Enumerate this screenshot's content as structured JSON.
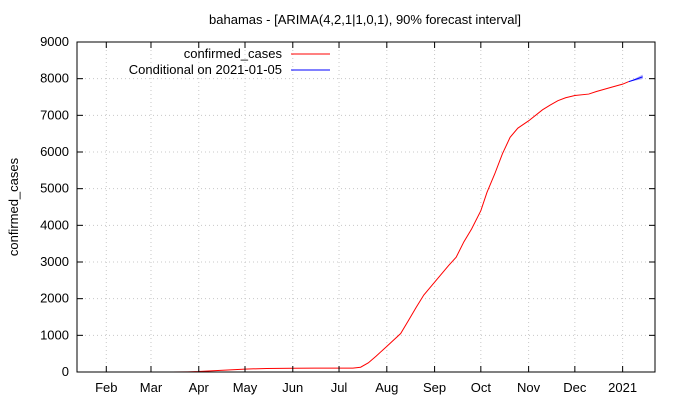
{
  "chart_data": {
    "type": "line",
    "title": "bahamas -  [ARIMA(4,2,1|1,0,1), 90% forecast interval]",
    "xlabel": "",
    "ylabel": "confirmed_cases",
    "ylim": [
      0,
      9000
    ],
    "xlim": [
      "2020-01-13",
      "2021-01-22"
    ],
    "yticks": [
      0,
      1000,
      2000,
      3000,
      4000,
      5000,
      6000,
      7000,
      8000,
      9000
    ],
    "xticks": [
      {
        "date": "2020-02-01",
        "label": "Feb"
      },
      {
        "date": "2020-03-01",
        "label": "Mar"
      },
      {
        "date": "2020-04-01",
        "label": "Apr"
      },
      {
        "date": "2020-05-01",
        "label": "May"
      },
      {
        "date": "2020-06-01",
        "label": "Jun"
      },
      {
        "date": "2020-07-01",
        "label": "Jul"
      },
      {
        "date": "2020-08-01",
        "label": "Aug"
      },
      {
        "date": "2020-09-01",
        "label": "Sep"
      },
      {
        "date": "2020-10-01",
        "label": "Oct"
      },
      {
        "date": "2020-11-01",
        "label": "Nov"
      },
      {
        "date": "2020-12-01",
        "label": "Dec"
      },
      {
        "date": "2021-01-01",
        "label": "2021"
      }
    ],
    "grid": true,
    "legend_position": "top-left",
    "series": [
      {
        "name": "confirmed_cases",
        "color": "#ff0000",
        "points": [
          [
            "2020-03-15",
            1
          ],
          [
            "2020-03-25",
            5
          ],
          [
            "2020-04-01",
            14
          ],
          [
            "2020-04-15",
            46
          ],
          [
            "2020-05-01",
            80
          ],
          [
            "2020-05-15",
            96
          ],
          [
            "2020-06-01",
            102
          ],
          [
            "2020-06-15",
            104
          ],
          [
            "2020-07-01",
            104
          ],
          [
            "2020-07-10",
            107
          ],
          [
            "2020-07-15",
            130
          ],
          [
            "2020-07-20",
            250
          ],
          [
            "2020-07-25",
            430
          ],
          [
            "2020-08-01",
            700
          ],
          [
            "2020-08-10",
            1050
          ],
          [
            "2020-08-15",
            1400
          ],
          [
            "2020-08-20",
            1760
          ],
          [
            "2020-08-25",
            2100
          ],
          [
            "2020-09-01",
            2450
          ],
          [
            "2020-09-10",
            2900
          ],
          [
            "2020-09-15",
            3130
          ],
          [
            "2020-09-20",
            3550
          ],
          [
            "2020-09-25",
            3900
          ],
          [
            "2020-10-01",
            4400
          ],
          [
            "2020-10-05",
            4900
          ],
          [
            "2020-10-10",
            5400
          ],
          [
            "2020-10-15",
            5950
          ],
          [
            "2020-10-20",
            6400
          ],
          [
            "2020-10-25",
            6650
          ],
          [
            "2020-11-01",
            6850
          ],
          [
            "2020-11-10",
            7150
          ],
          [
            "2020-11-15",
            7280
          ],
          [
            "2020-11-20",
            7400
          ],
          [
            "2020-11-25",
            7480
          ],
          [
            "2020-12-01",
            7540
          ],
          [
            "2020-12-10",
            7580
          ],
          [
            "2020-12-15",
            7650
          ],
          [
            "2020-12-25",
            7770
          ],
          [
            "2021-01-01",
            7850
          ],
          [
            "2021-01-05",
            7920
          ]
        ]
      },
      {
        "name": "Conditional on 2021-01-05",
        "color": "#0000ff",
        "band_color": "#aaaaff",
        "points": [
          [
            "2021-01-05",
            7920
          ],
          [
            "2021-01-08",
            7960
          ],
          [
            "2021-01-11",
            8005
          ],
          [
            "2021-01-14",
            8050
          ]
        ],
        "lower": [
          7920,
          7940,
          7965,
          7990
        ],
        "upper": [
          7920,
          7980,
          8045,
          8110
        ]
      }
    ]
  }
}
